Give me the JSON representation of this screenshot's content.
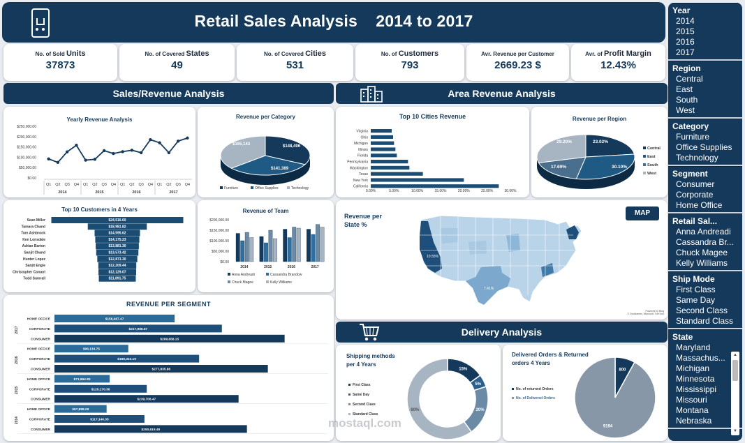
{
  "header": {
    "title": "Retail Sales Analysis    2014 to 2017",
    "icon": "shopping-cart-phone-icon"
  },
  "kpis": [
    {
      "pre": "No. of Sold ",
      "main": "Units",
      "value": "37873"
    },
    {
      "pre": "No. of Covered ",
      "main": "States",
      "value": "49"
    },
    {
      "pre": "No. of Covered ",
      "main": "Cities",
      "value": "531"
    },
    {
      "pre": "No. of ",
      "main": "Customers",
      "value": "793"
    },
    {
      "pre": "Avr. Revenue per Customer",
      "main": "",
      "value": "2669.23 $"
    },
    {
      "pre": "Avr. of ",
      "main": "Profit Margin",
      "value": "12.43%"
    }
  ],
  "sections": {
    "sales": "Sales/Revenue Analysis",
    "area": "Area Revenue Analysis",
    "delivery": "Delivery Analysis"
  },
  "colors": {
    "navy": "#15395a",
    "mid": "#2a6b9a",
    "light": "#a7b4c2",
    "accent": "#1e5a84"
  },
  "chart_data": [
    {
      "type": "line",
      "title": "Yearly Revenue Analysis",
      "quarters": [
        "Q1",
        "Q2",
        "Q3",
        "Q4",
        "Q1",
        "Q2",
        "Q3",
        "Q4",
        "Q1",
        "Q2",
        "Q3",
        "Q4",
        "Q1",
        "Q2",
        "Q3",
        "Q4"
      ],
      "years": [
        "2014",
        "2015",
        "2016",
        "2017"
      ],
      "yticks": [
        "$250,000.00",
        "$200,000.00",
        "$150,000.00",
        "$100,000.00",
        "$50,000.00",
        "$0.00"
      ],
      "ylim": [
        0,
        250000
      ],
      "values": [
        92000,
        75000,
        126000,
        158000,
        86000,
        90000,
        132000,
        118000,
        127000,
        134000,
        122000,
        185000,
        170000,
        122000,
        178000,
        193000
      ]
    },
    {
      "type": "pie",
      "title": "Revenue per Category",
      "labels": [
        "Furniture",
        "Office Supplies",
        "Technology"
      ],
      "values": [
        148496,
        141389,
        165143
      ],
      "data_labels": [
        "$148,496",
        "$141,389",
        "$165,143"
      ]
    },
    {
      "type": "bar",
      "title": "Top 10 Cities Revenue",
      "categories": [
        "Virginia",
        "Ohio",
        "Michigan",
        "Illinois",
        "Florida",
        "Pennsylvania",
        "Washington",
        "Texas",
        "New York",
        "California"
      ],
      "values": [
        4.5,
        4.8,
        5.0,
        5.3,
        5.6,
        8.0,
        8.3,
        11.2,
        20.0,
        27.5
      ],
      "xticks": [
        "0.00%",
        "5.00%",
        "10.00%",
        "15.00%",
        "20.00%",
        "25.00%",
        "30.00%"
      ],
      "xlim": [
        0,
        30
      ]
    },
    {
      "type": "pie",
      "title": "Revenue per Region",
      "labels": [
        "Central",
        "East",
        "South",
        "West"
      ],
      "values": [
        23.02,
        30.1,
        17.69,
        29.2
      ],
      "data_labels": [
        "23.02%",
        "30.10%",
        "17.69%",
        "29.20%"
      ]
    },
    {
      "type": "bar",
      "title": "Top 10 Customers in 4 Years",
      "categories": [
        "Sean Miller",
        "Tamara Chand",
        "Tom Ashbrook",
        "Ken Lonsdale",
        "Adrian Barton",
        "Sanjit Chand",
        "Hunter Lopez",
        "Sanjit Engle",
        "Christopher Conant",
        "Todd Sumrall"
      ],
      "values": [
        24516.6,
        18981.82,
        14595.62,
        14175.23,
        13881.3,
        13573.42,
        12873.3,
        12209.44,
        12129.07,
        11891.75
      ],
      "data_labels": [
        "$24,516.60",
        "$18,981.82",
        "$14,595.62",
        "$14,175.23",
        "$13,881.30",
        "$13,573.42",
        "$12,873.30",
        "$12,209.44",
        "$12,129.07",
        "$11,891.75"
      ]
    },
    {
      "type": "bar",
      "title": "Revenue of Team",
      "categories": [
        "2014",
        "2015",
        "2016",
        "2017"
      ],
      "yticks": [
        "$200,000.00",
        "$150,000.00",
        "$100,000.00",
        "$50,000.00",
        "$0.00"
      ],
      "ylim": [
        0,
        200000
      ],
      "series": [
        {
          "name": "Anna Andreadi",
          "values": [
            135000,
            120000,
            155000,
            155000
          ]
        },
        {
          "name": "Cassandra Brandow",
          "values": [
            100000,
            90000,
            115000,
            130000
          ]
        },
        {
          "name": "Chuck Magee",
          "values": [
            140000,
            150000,
            165000,
            178000
          ]
        },
        {
          "name": "Kelly Williams",
          "values": [
            115000,
            110000,
            160000,
            165000
          ]
        }
      ]
    },
    {
      "type": "bar",
      "title": "REVENUE PER SEGMENT",
      "groups": [
        {
          "year": "2017",
          "rows": [
            {
              "label": "HOME OFFICE",
              "value": 156467.47,
              "text": "$156,467.47"
            },
            {
              "label": "CORPORATE",
              "value": 217986.57,
              "text": "$217,986.57"
            },
            {
              "label": "CONSUMER",
              "value": 299658.15,
              "text": "$299,658.15"
            }
          ]
        },
        {
          "year": "2016",
          "rows": [
            {
              "label": "HOME OFFICE",
              "value": 96134.75,
              "text": "$96,134.75"
            },
            {
              "label": "CORPORATE",
              "value": 188323.19,
              "text": "$188,323.19"
            },
            {
              "label": "CONSUMER",
              "value": 277835.86,
              "text": "$277,835.86"
            }
          ]
        },
        {
          "year": "2015",
          "rows": [
            {
              "label": "HOME OFFICE",
              "value": 71864.83,
              "text": "$71,864.83"
            },
            {
              "label": "CORPORATE",
              "value": 120170.36,
              "text": "$120,170.36"
            },
            {
              "label": "CONSUMER",
              "value": 239706.47,
              "text": "$239,706.47"
            }
          ]
        },
        {
          "year": "2014",
          "rows": [
            {
              "label": "HOME OFFICE",
              "value": 67888.09,
              "text": "$67,888.09"
            },
            {
              "label": "CORPORATE",
              "value": 117140.35,
              "text": "$117,140.35"
            },
            {
              "label": "CONSUMER",
              "value": 250619.49,
              "text": "$250,619.49"
            }
          ]
        }
      ],
      "xlim": [
        0,
        320000
      ]
    },
    {
      "type": "pie",
      "title": "Shipping methods per 4 Years",
      "labels": [
        "First Class",
        "Same Day",
        "Second Class",
        "Standard Class"
      ],
      "values": [
        15,
        5,
        20,
        60
      ],
      "data_labels": [
        "15%",
        "5%",
        "20%",
        "60%"
      ]
    },
    {
      "type": "pie",
      "title": "Delivered Orders & Returned orders  4 Years",
      "labels": [
        "No. of returned Orders",
        "No. of Delivered Orders"
      ],
      "values": [
        800,
        9194
      ],
      "data_labels": [
        "800",
        "9194"
      ]
    }
  ],
  "map": {
    "title": "Revenue per State %",
    "button": "MAP",
    "labels": [
      "10.55%",
      "7.41%"
    ],
    "credit1": "Powered by Bing",
    "credit2": "© GeoNames, Microsoft, TomTom"
  },
  "slicers": [
    {
      "title": "Year",
      "items": [
        "2014",
        "2015",
        "2016",
        "2017"
      ]
    },
    {
      "title": "Region",
      "items": [
        "Central",
        "East",
        "South",
        "West"
      ]
    },
    {
      "title": "Category",
      "items": [
        "Furniture",
        "Office Supplies",
        "Technology"
      ]
    },
    {
      "title": "Segment",
      "items": [
        "Consumer",
        "Corporate",
        "Home Office"
      ]
    },
    {
      "title": "Retail Sal...",
      "items": [
        "Anna Andreadi",
        "Cassandra Br...",
        "Chuck Magee",
        "Kelly Williams"
      ]
    },
    {
      "title": "Ship Mode",
      "items": [
        "First Class",
        "Same Day",
        "Second Class",
        "Standard Class"
      ]
    },
    {
      "title": "State",
      "items": [
        "Maryland",
        "Massachus...",
        "Michigan",
        "Minnesota",
        "Mississippi",
        "Missouri",
        "Montana",
        "Nebraska"
      ]
    }
  ],
  "watermark": "mostaql.com"
}
